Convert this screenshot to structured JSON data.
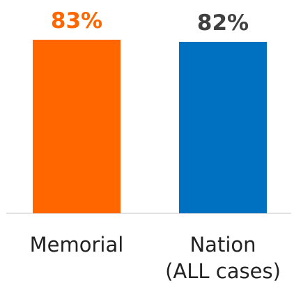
{
  "chart_data": {
    "type": "bar",
    "categories": [
      [
        "Memorial"
      ],
      [
        "Nation",
        "(ALL cases)"
      ]
    ],
    "values": [
      83,
      82
    ],
    "data_labels": [
      "83%",
      "82%"
    ],
    "ylim": [
      0,
      85
    ],
    "grid": false,
    "legend": "none"
  },
  "colors": {
    "bars": [
      "#FF6600",
      "#0070C0"
    ],
    "data_labels": [
      "#FF6600",
      "#404040"
    ],
    "baseline": "#D9D9D9"
  }
}
